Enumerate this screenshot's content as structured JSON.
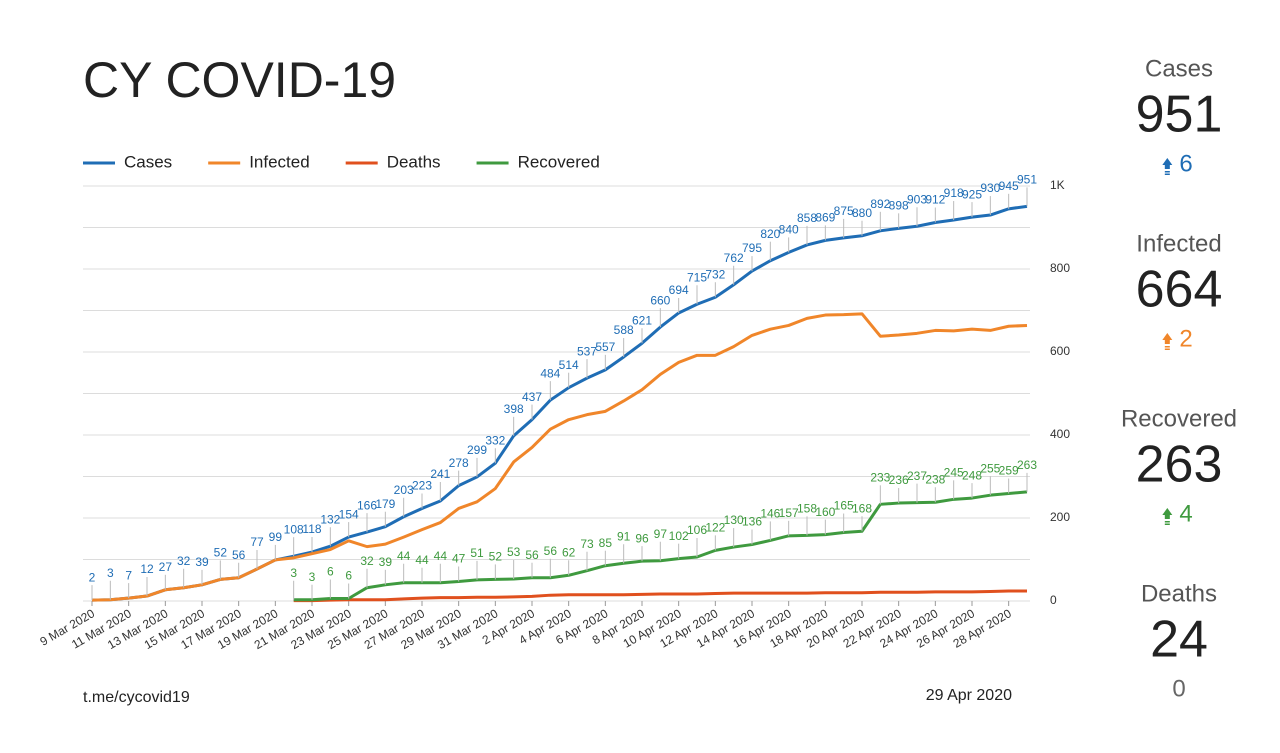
{
  "title": "CY COVID-19",
  "footer": {
    "source": "t.me/cycovid19",
    "date": "29 Apr 2020"
  },
  "stats": [
    {
      "label": "Cases",
      "value": 951,
      "change": 6,
      "color": "#1f6db5"
    },
    {
      "label": "Infected",
      "value": 664,
      "change": 2,
      "color": "#f0862a"
    },
    {
      "label": "Recovered",
      "value": 263,
      "change": 4,
      "color": "#3f9a3f"
    },
    {
      "label": "Deaths",
      "value": 24,
      "change": 0,
      "color": "#666666"
    }
  ],
  "chart_data": {
    "type": "line",
    "categories": [
      "9 Mar 2020",
      null,
      "11 Mar 2020",
      null,
      "13 Mar 2020",
      null,
      "15 Mar 2020",
      null,
      "17 Mar 2020",
      null,
      "19 Mar 2020",
      null,
      "21 Mar 2020",
      null,
      "23 Mar 2020",
      null,
      "25 Mar 2020",
      null,
      "27 Mar 2020",
      null,
      "29 Mar 2020",
      null,
      "31 Mar 2020",
      null,
      "2 Apr 2020",
      null,
      "4 Apr 2020",
      null,
      "6 Apr 2020",
      null,
      "8 Apr 2020",
      null,
      "10 Apr 2020",
      null,
      "12 Apr 2020",
      null,
      "14 Apr 2020",
      null,
      "16 Apr 2020",
      null,
      "18 Apr 2020",
      null,
      "20 Apr 2020",
      null,
      "22 Apr 2020",
      null,
      "24 Apr 2020",
      null,
      "26 Apr 2020",
      null,
      "28 Apr 2020",
      null
    ],
    "series": [
      {
        "name": "Cases",
        "color": "#1f6db5",
        "data_labels": true,
        "values": [
          2,
          3,
          7,
          12,
          27,
          32,
          39,
          52,
          56,
          77,
          99,
          108,
          118,
          132,
          154,
          166,
          179,
          203,
          223,
          241,
          278,
          299,
          332,
          398,
          437,
          484,
          514,
          537,
          557,
          588,
          621,
          660,
          694,
          715,
          732,
          762,
          795,
          820,
          840,
          858,
          869,
          875,
          880,
          892,
          898,
          903,
          912,
          918,
          925,
          930,
          945,
          951
        ]
      },
      {
        "name": "Infected",
        "color": "#f0862a",
        "data_labels": false,
        "values": [
          2,
          3,
          7,
          12,
          27,
          32,
          39,
          52,
          56,
          77,
          99,
          104,
          114,
          124,
          145,
          131,
          137,
          154,
          172,
          189,
          223,
          239,
          271,
          335,
          370,
          414,
          437,
          449,
          457,
          482,
          509,
          546,
          575,
          592,
          592,
          613,
          640,
          655,
          664,
          681,
          689,
          690,
          692,
          638,
          641,
          645,
          652,
          651,
          655,
          652,
          662,
          664
        ]
      },
      {
        "name": "Deaths",
        "color": "#e0501e",
        "data_labels": false,
        "values": [
          null,
          null,
          null,
          null,
          null,
          null,
          null,
          null,
          null,
          null,
          null,
          1,
          1,
          2,
          3,
          3,
          3,
          5,
          7,
          8,
          8,
          9,
          9,
          10,
          11,
          14,
          15,
          15,
          15,
          15,
          16,
          17,
          17,
          17,
          18,
          19,
          19,
          19,
          19,
          19,
          20,
          20,
          20,
          21,
          21,
          21,
          22,
          22,
          22,
          23,
          24,
          24
        ]
      },
      {
        "name": "Recovered",
        "color": "#3f9a3f",
        "data_labels": true,
        "values": [
          null,
          null,
          null,
          null,
          null,
          null,
          null,
          null,
          null,
          null,
          null,
          3,
          3,
          6,
          6,
          32,
          39,
          44,
          44,
          44,
          47,
          51,
          52,
          53,
          56,
          56,
          62,
          73,
          85,
          91,
          96,
          97,
          102,
          106,
          122,
          130,
          136,
          146,
          157,
          158,
          160,
          165,
          168,
          233,
          236,
          237,
          238,
          245,
          248,
          255,
          259,
          263
        ]
      }
    ],
    "ylim": [
      0,
      1000
    ],
    "yticks": [
      0,
      200,
      400,
      600,
      800,
      {
        "value": 1000,
        "label": "1K"
      }
    ],
    "minor_yticks": [
      100,
      300,
      500,
      700,
      900
    ],
    "grid": true,
    "legend": "top"
  }
}
